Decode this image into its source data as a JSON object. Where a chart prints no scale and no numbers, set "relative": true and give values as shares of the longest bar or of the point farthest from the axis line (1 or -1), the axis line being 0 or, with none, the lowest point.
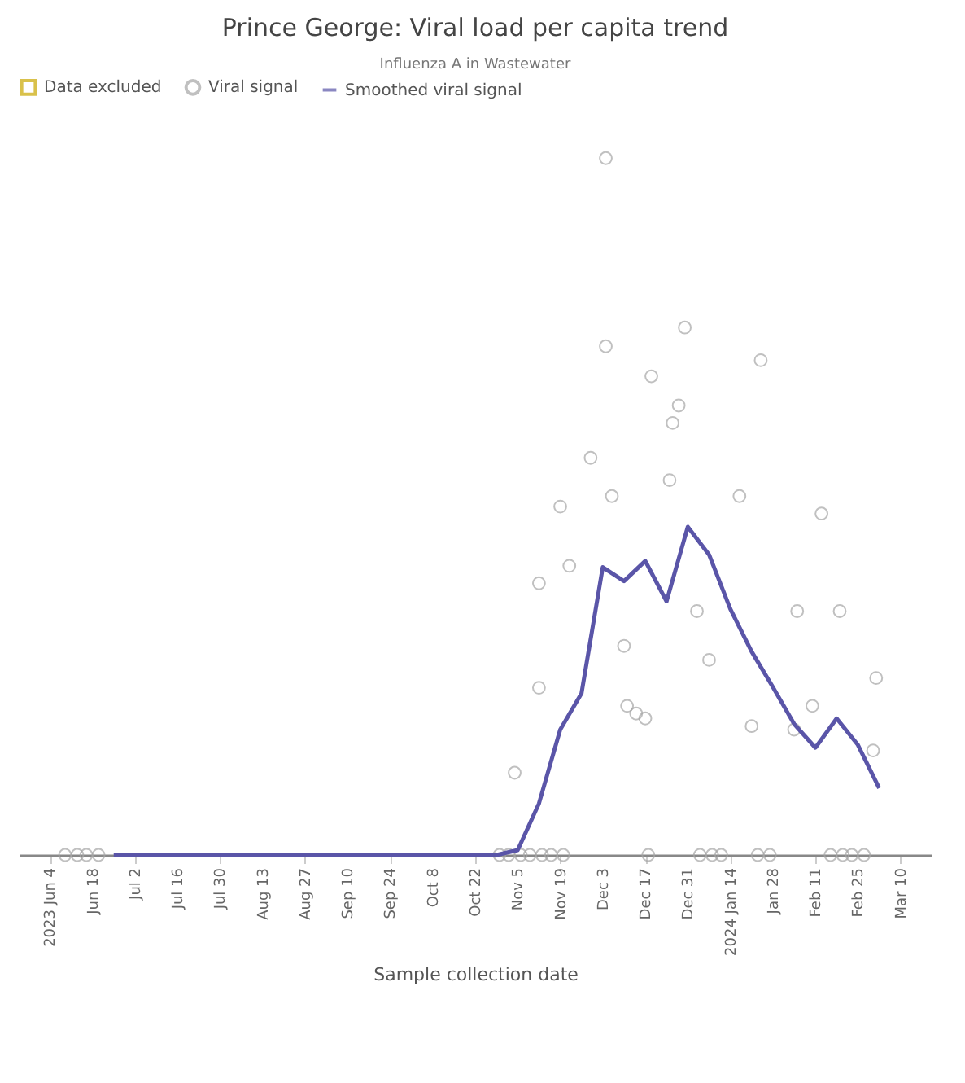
{
  "chart_data": {
    "type": "scatter",
    "title": "Prince George: Viral load per capita trend",
    "subtitle": "Influenza A in Wastewater",
    "xlabel": "Sample collection date",
    "relative": true,
    "legend": "top",
    "xlim": [
      "2023-05-25",
      "2024-03-20"
    ],
    "xticks": [
      {
        "value": "2023-06-04",
        "label": "2023 Jun 4"
      },
      {
        "value": "2023-06-18",
        "label": "Jun 18"
      },
      {
        "value": "2023-07-02",
        "label": "Jul 2"
      },
      {
        "value": "2023-07-16",
        "label": "Jul 16"
      },
      {
        "value": "2023-07-30",
        "label": "Jul 30"
      },
      {
        "value": "2023-08-13",
        "label": "Aug 13"
      },
      {
        "value": "2023-08-27",
        "label": "Aug 27"
      },
      {
        "value": "2023-09-10",
        "label": "Sep 10"
      },
      {
        "value": "2023-09-24",
        "label": "Sep 24"
      },
      {
        "value": "2023-10-08",
        "label": "Oct 8"
      },
      {
        "value": "2023-10-22",
        "label": "Oct 22"
      },
      {
        "value": "2023-11-05",
        "label": "Nov 5"
      },
      {
        "value": "2023-11-19",
        "label": "Nov 19"
      },
      {
        "value": "2023-12-03",
        "label": "Dec 3"
      },
      {
        "value": "2023-12-17",
        "label": "Dec 17"
      },
      {
        "value": "2023-12-31",
        "label": "Dec 31"
      },
      {
        "value": "2024-01-14",
        "label": "2024 Jan 14"
      },
      {
        "value": "2024-01-28",
        "label": "Jan 28"
      },
      {
        "value": "2024-02-11",
        "label": "Feb 11"
      },
      {
        "value": "2024-02-25",
        "label": "Feb 25"
      },
      {
        "value": "2024-03-10",
        "label": "Mar 10"
      }
    ],
    "series": [
      {
        "name": "Data excluded",
        "marker": "square",
        "color": "#c9a800"
      },
      {
        "name": "Viral signal",
        "marker": "circle",
        "color": "#a6a6a6",
        "x": [
          "2023-06-09",
          "2023-06-13",
          "2023-06-16",
          "2023-06-20",
          "2023-10-30",
          "2023-11-02",
          "2023-11-04",
          "2023-11-06",
          "2023-11-09",
          "2023-11-12",
          "2023-11-12",
          "2023-11-13",
          "2023-11-16",
          "2023-11-19",
          "2023-11-20",
          "2023-11-22",
          "2023-11-29",
          "2023-12-04",
          "2023-12-04",
          "2023-12-06",
          "2023-12-10",
          "2023-12-11",
          "2023-12-14",
          "2023-12-17",
          "2023-12-18",
          "2023-12-19",
          "2023-12-25",
          "2023-12-26",
          "2023-12-28",
          "2023-12-30",
          "2024-01-03",
          "2024-01-04",
          "2024-01-07",
          "2024-01-08",
          "2024-01-11",
          "2024-01-17",
          "2024-01-21",
          "2024-01-23",
          "2024-01-24",
          "2024-01-27",
          "2024-02-04",
          "2024-02-05",
          "2024-02-10",
          "2024-02-13",
          "2024-02-16",
          "2024-02-19",
          "2024-02-20",
          "2024-02-23",
          "2024-02-27",
          "2024-03-01",
          "2024-03-02"
        ],
        "values": [
          0,
          0,
          0,
          0,
          0,
          0,
          0.118,
          0,
          0,
          0.24,
          0.39,
          0,
          0,
          0.5,
          0,
          0.415,
          0.57,
          1,
          0.73,
          0.515,
          0.3,
          0.214,
          0.203,
          0.196,
          0,
          0.687,
          0.538,
          0.62,
          0.645,
          0.757,
          0.35,
          0,
          0.28,
          0,
          0,
          0.515,
          0.185,
          0,
          0.71,
          0,
          0.18,
          0.35,
          0.214,
          0.49,
          0,
          0.35,
          0,
          0,
          0,
          0.15,
          0.254
        ]
      },
      {
        "name": "Smoothed viral signal",
        "type": "line",
        "color": "#5a55a8",
        "x": [
          "2023-06-25",
          "2023-07-02",
          "2023-07-09",
          "2023-07-16",
          "2023-07-23",
          "2023-07-30",
          "2023-08-06",
          "2023-08-13",
          "2023-08-20",
          "2023-08-27",
          "2023-09-03",
          "2023-09-10",
          "2023-09-17",
          "2023-09-24",
          "2023-10-01",
          "2023-10-08",
          "2023-10-15",
          "2023-10-22",
          "2023-10-29",
          "2023-11-05",
          "2023-11-12",
          "2023-11-19",
          "2023-11-26",
          "2023-12-03",
          "2023-12-10",
          "2023-12-17",
          "2023-12-24",
          "2023-12-31",
          "2024-01-07",
          "2024-01-14",
          "2024-01-21",
          "2024-01-28",
          "2024-02-04",
          "2024-02-11",
          "2024-02-18",
          "2024-02-25",
          "2024-03-03"
        ],
        "values": [
          0,
          0,
          0,
          0,
          0,
          0,
          0,
          0,
          0,
          0,
          0,
          0,
          0,
          0,
          0,
          0,
          0,
          0,
          0,
          0.007,
          0.074,
          0.18,
          0.232,
          0.413,
          0.393,
          0.422,
          0.364,
          0.471,
          0.431,
          0.353,
          0.292,
          0.241,
          0.188,
          0.154,
          0.196,
          0.158,
          0.096
        ]
      }
    ]
  }
}
